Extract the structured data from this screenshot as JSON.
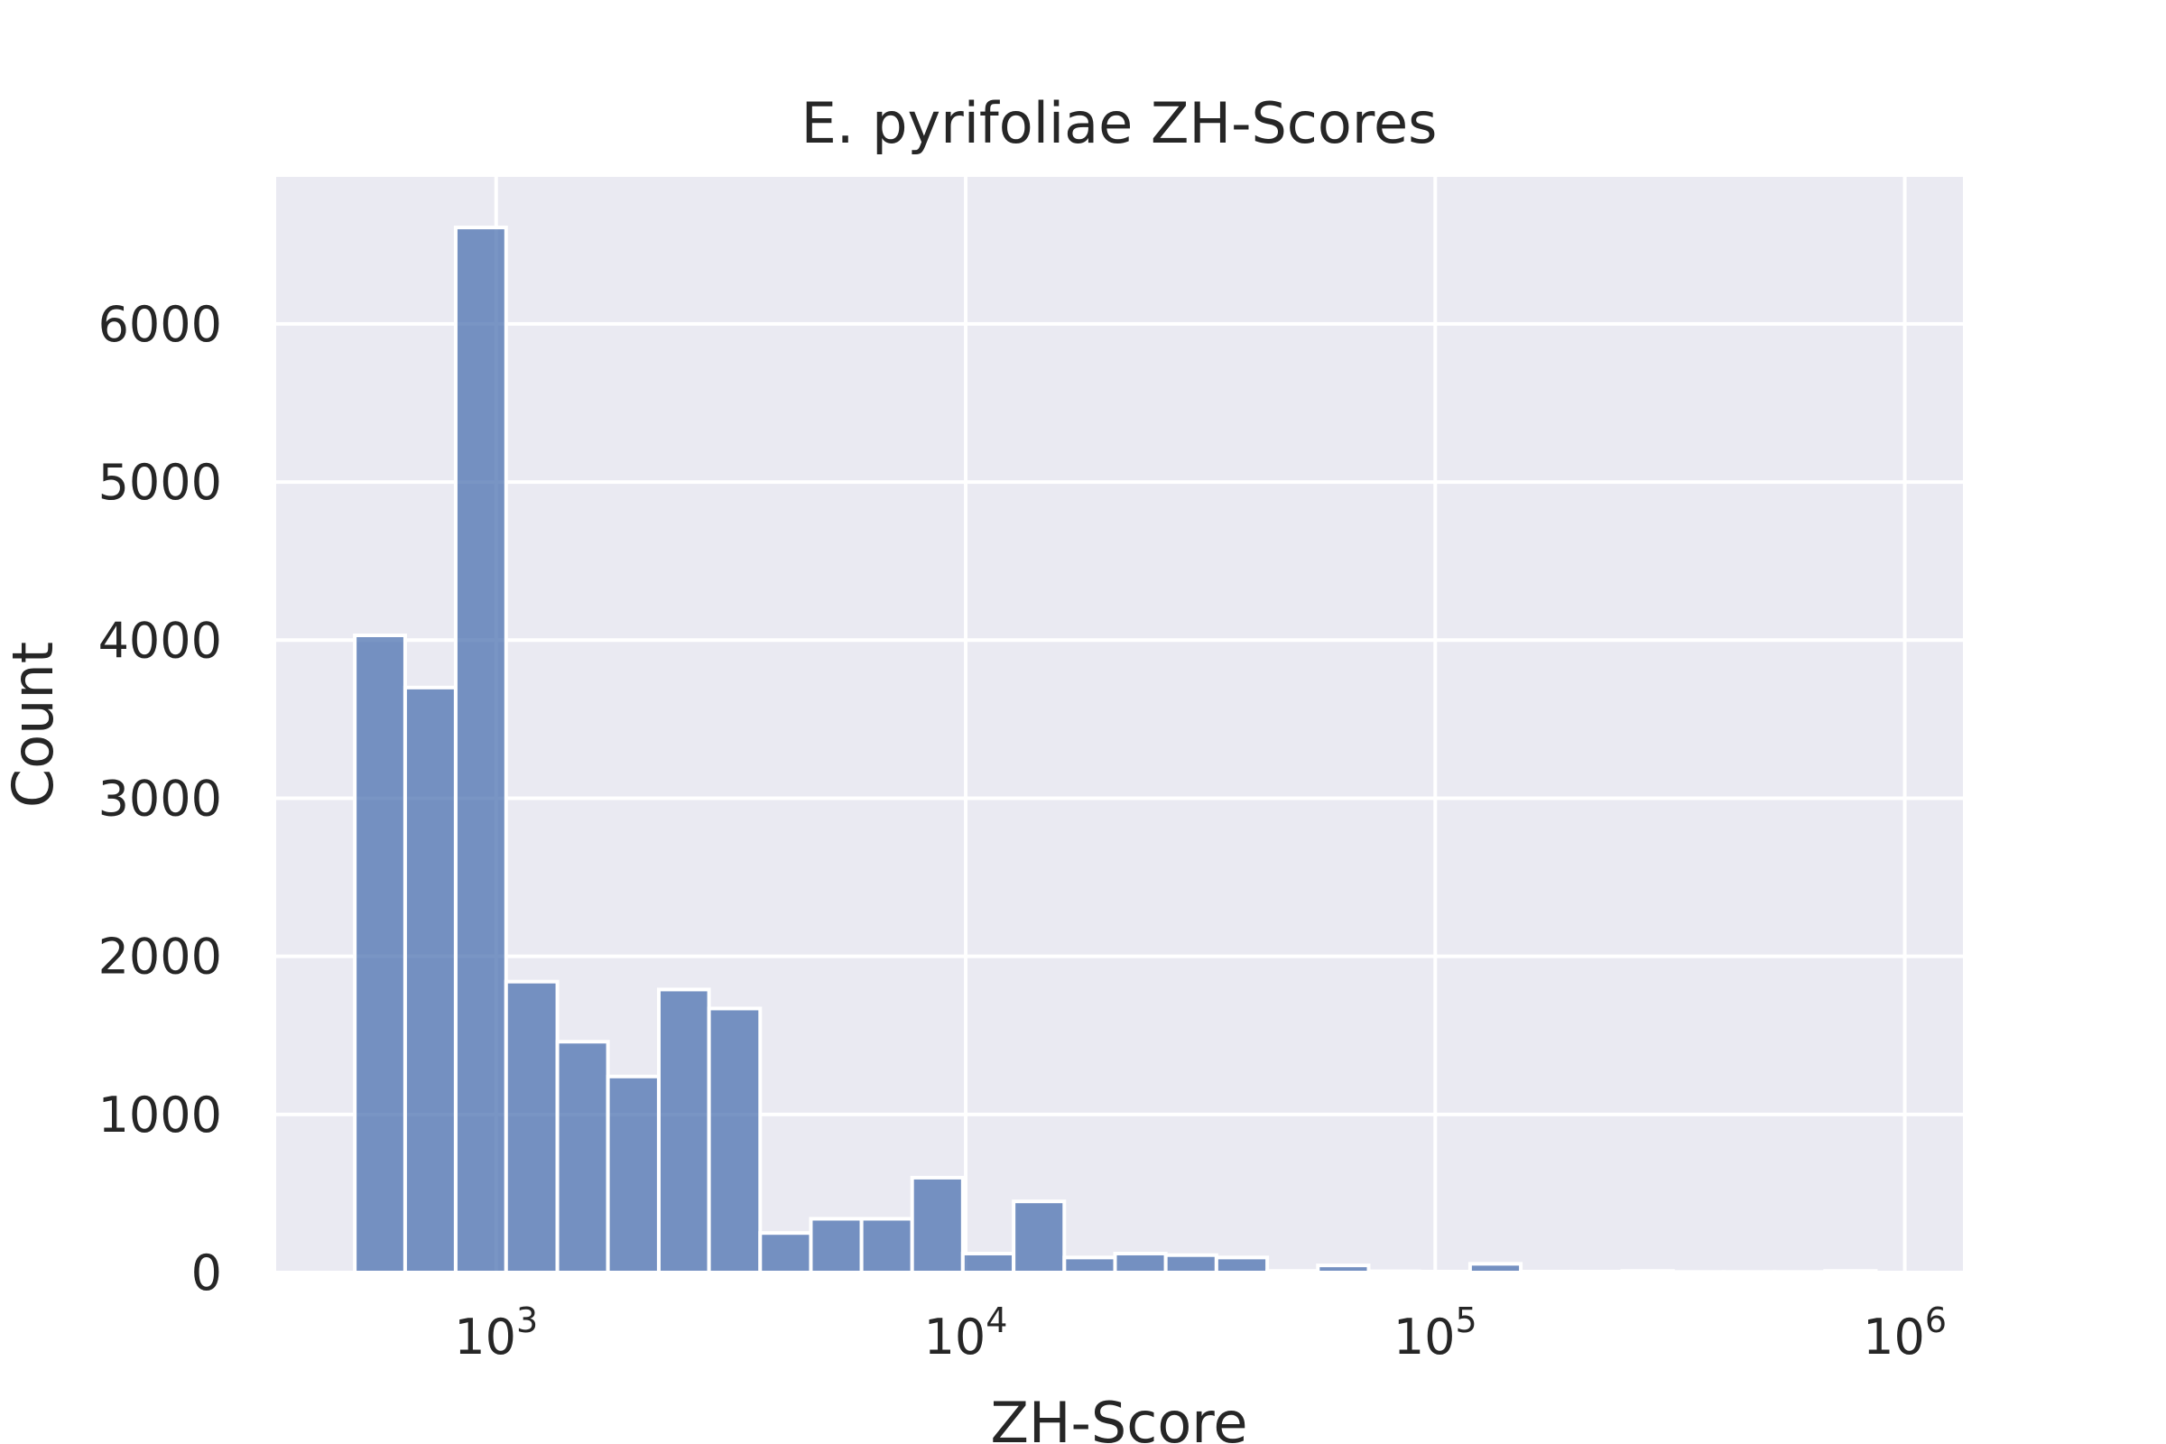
{
  "chart_data": {
    "type": "bar",
    "title": "E. pyrifoliae ZH-Scores",
    "xlabel": "ZH-Score",
    "ylabel": "Count",
    "x_scale": "log",
    "xlim": [
      340,
      1330000
    ],
    "ylim": [
      0,
      6930
    ],
    "grid": true,
    "background_color": "#eaeaf2",
    "bar_color": "#4c72b0",
    "x_ticks": [
      {
        "value": 1000,
        "base": "10",
        "exp": "3"
      },
      {
        "value": 10000,
        "base": "10",
        "exp": "4"
      },
      {
        "value": 100000,
        "base": "10",
        "exp": "5"
      },
      {
        "value": 1000000,
        "base": "10",
        "exp": "6"
      }
    ],
    "y_ticks": [
      0,
      1000,
      2000,
      3000,
      4000,
      5000,
      6000
    ],
    "y_tick_labels": [
      "0",
      "1000",
      "2000",
      "3000",
      "4000",
      "5000",
      "6000"
    ],
    "bins": [
      {
        "start": 500,
        "end": 640,
        "count": 4030
      },
      {
        "start": 640,
        "end": 820,
        "count": 3700
      },
      {
        "start": 820,
        "end": 1050,
        "count": 6610
      },
      {
        "start": 1050,
        "end": 1350,
        "count": 1840
      },
      {
        "start": 1350,
        "end": 1730,
        "count": 1460
      },
      {
        "start": 1730,
        "end": 2220,
        "count": 1240
      },
      {
        "start": 2220,
        "end": 2840,
        "count": 1790
      },
      {
        "start": 2840,
        "end": 3650,
        "count": 1670
      },
      {
        "start": 3650,
        "end": 4680,
        "count": 250
      },
      {
        "start": 4680,
        "end": 6000,
        "count": 340
      },
      {
        "start": 6000,
        "end": 7690,
        "count": 340
      },
      {
        "start": 7690,
        "end": 9860,
        "count": 600
      },
      {
        "start": 9860,
        "end": 12650,
        "count": 120
      },
      {
        "start": 12650,
        "end": 16220,
        "count": 450
      },
      {
        "start": 16220,
        "end": 20800,
        "count": 95
      },
      {
        "start": 20800,
        "end": 26670,
        "count": 120
      },
      {
        "start": 26670,
        "end": 34200,
        "count": 110
      },
      {
        "start": 34200,
        "end": 43870,
        "count": 95
      },
      {
        "start": 43870,
        "end": 56250,
        "count": 10
      },
      {
        "start": 56250,
        "end": 72140,
        "count": 45
      },
      {
        "start": 72140,
        "end": 92510,
        "count": 8
      },
      {
        "start": 92510,
        "end": 118630,
        "count": 6
      },
      {
        "start": 118630,
        "end": 152130,
        "count": 55
      },
      {
        "start": 152130,
        "end": 195080,
        "count": 6
      },
      {
        "start": 195080,
        "end": 250170,
        "count": 6
      },
      {
        "start": 250170,
        "end": 320830,
        "count": 10
      },
      {
        "start": 320830,
        "end": 411430,
        "count": 4
      },
      {
        "start": 411430,
        "end": 527620,
        "count": 4
      },
      {
        "start": 527620,
        "end": 676620,
        "count": 4
      },
      {
        "start": 676620,
        "end": 867700,
        "count": 10
      }
    ]
  }
}
